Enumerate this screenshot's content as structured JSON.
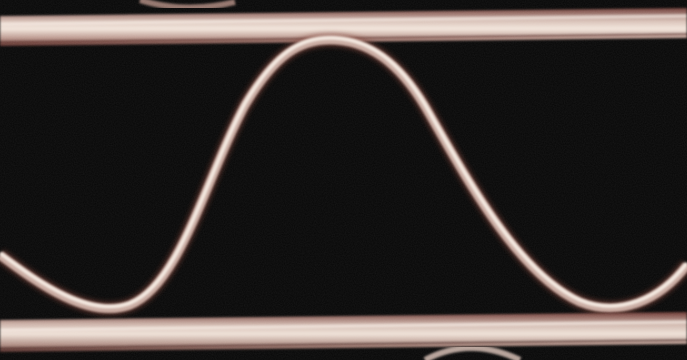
{
  "image": {
    "subject": "corrugated-cardboard-cross-section-macro",
    "colors": {
      "background": "#050505",
      "paper_highlight": "#f2e6dc",
      "paper_mid": "#c8aaa0",
      "paper_edge": "#7a3a32"
    }
  }
}
